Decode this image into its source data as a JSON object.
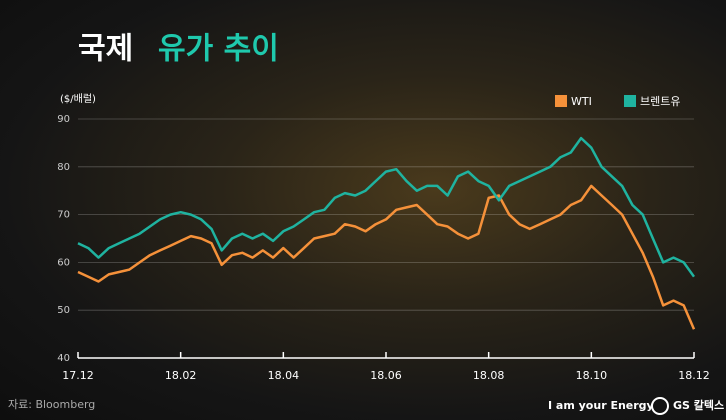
{
  "chart_data": {
    "type": "line",
    "title": [
      "국제",
      "유가 추이"
    ],
    "y_label": "($/배럴)",
    "categories": [
      "17.12",
      null,
      null,
      null,
      null,
      null,
      null,
      null,
      null,
      null,
      "18.02",
      null,
      null,
      null,
      null,
      null,
      null,
      null,
      null,
      null,
      "18.04",
      null,
      null,
      null,
      null,
      null,
      null,
      null,
      null,
      null,
      "18.06",
      null,
      null,
      null,
      null,
      null,
      null,
      null,
      null,
      null,
      "18.08",
      null,
      null,
      null,
      null,
      null,
      null,
      null,
      null,
      null,
      "18.10",
      null,
      null,
      null,
      null,
      null,
      null,
      null,
      null,
      null,
      "18.12"
    ],
    "series": [
      {
        "name": "WTI",
        "color": "#f5913a",
        "values": [
          58,
          57,
          56,
          57.5,
          58,
          58.5,
          60,
          61.5,
          62.5,
          63.5,
          64.5,
          65.5,
          65,
          64,
          59.5,
          61.5,
          62,
          61,
          62.5,
          61,
          63,
          61,
          63,
          65,
          65.5,
          66,
          68,
          67.5,
          66.5,
          68,
          69,
          71,
          71.5,
          72,
          70,
          68,
          67.5,
          66,
          65,
          66,
          73.5,
          74,
          70,
          68,
          67,
          68,
          69,
          70,
          72,
          73,
          76,
          74,
          72,
          70,
          66,
          62,
          57,
          51,
          52,
          51,
          46
        ]
      },
      {
        "name": "브렌트유",
        "color": "#1fb3a0",
        "values": [
          64,
          63,
          61,
          63,
          64,
          65,
          66,
          67.5,
          69,
          70,
          70.5,
          70,
          69,
          67,
          62.5,
          65,
          66,
          65,
          66,
          64.5,
          66.5,
          67.5,
          69,
          70.5,
          71,
          73.5,
          74.5,
          74,
          75,
          77,
          79,
          79.5,
          77,
          75,
          76,
          76,
          74,
          78,
          79,
          77,
          76,
          73,
          76,
          77,
          78,
          79,
          80,
          82,
          83,
          86,
          84,
          80,
          78,
          76,
          72,
          70,
          65,
          60,
          61,
          60,
          57
        ]
      }
    ],
    "ylim": [
      40,
      90
    ],
    "yticks": [
      40,
      50,
      60,
      70,
      80,
      90
    ],
    "grid": true,
    "source": "자료: Bloomberg"
  },
  "footer": {
    "slogan": "I am your Energy",
    "brand": "GS 칼텍스"
  }
}
